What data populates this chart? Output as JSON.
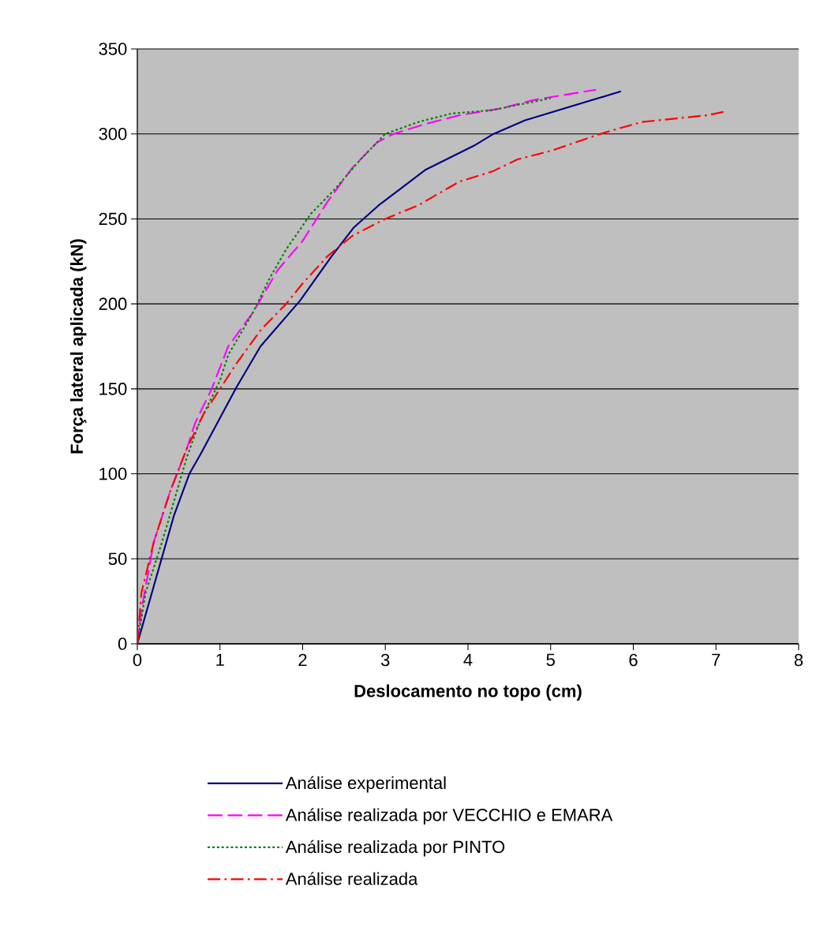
{
  "chart_data": {
    "type": "line",
    "xlabel": "Deslocamento no topo (cm)",
    "ylabel": "Força lateral aplicada (kN)",
    "xlim": [
      0,
      8
    ],
    "ylim": [
      0,
      350
    ],
    "xticks": [
      0,
      1,
      2,
      3,
      4,
      5,
      6,
      7,
      8
    ],
    "yticks": [
      0,
      50,
      100,
      150,
      200,
      250,
      300,
      350
    ],
    "grid": "y",
    "legend": "bottom",
    "series": [
      {
        "name": "Análise experimental",
        "color": "#000080",
        "line_style": "solid",
        "x": [
          0,
          0.44,
          0.63,
          0.77,
          1.2,
          1.49,
          1.97,
          2.35,
          2.62,
          2.92,
          3.49,
          4.07,
          4.31,
          4.69,
          5.85
        ],
        "values": [
          0,
          75,
          100,
          112,
          151,
          175,
          202,
          228,
          245,
          258,
          279,
          293,
          300,
          308,
          325
        ]
      },
      {
        "name": "Análise realizada por VECCHIO e EMARA",
        "color": "#ff00ff",
        "line_style": "dashed",
        "x": [
          0,
          0.05,
          0.2,
          0.4,
          0.6,
          0.7,
          0.9,
          1.1,
          1.4,
          1.7,
          2.0,
          2.3,
          2.6,
          2.9,
          3.1,
          3.5,
          3.9,
          4.4,
          4.8,
          5.55
        ],
        "values": [
          0,
          20,
          60,
          90,
          115,
          130,
          150,
          175,
          195,
          220,
          237,
          260,
          280,
          295,
          300,
          306,
          311,
          315,
          320,
          326
        ]
      },
      {
        "name": "Análise realizada por PINTO",
        "color": "#008000",
        "line_style": "dotted",
        "x": [
          0,
          0.1,
          0.3,
          0.45,
          0.6,
          0.75,
          1.0,
          1.1,
          1.4,
          1.6,
          1.8,
          2.1,
          2.4,
          2.7,
          3.0,
          3.4,
          3.8,
          4.3,
          4.7,
          5.0
        ],
        "values": [
          0,
          30,
          60,
          85,
          110,
          130,
          155,
          170,
          195,
          215,
          232,
          253,
          268,
          285,
          300,
          307,
          312,
          314,
          318,
          321
        ]
      },
      {
        "name": "Análise realizada",
        "color": "#ff0000",
        "line_style": "dashdot",
        "x": [
          0,
          0.05,
          0.2,
          0.4,
          0.6,
          0.8,
          1.0,
          1.2,
          1.5,
          1.8,
          2.0,
          2.3,
          2.6,
          3.0,
          3.4,
          3.9,
          4.3,
          4.6,
          5.0,
          5.6,
          6.1,
          6.5,
          6.9,
          7.1
        ],
        "values": [
          0,
          30,
          60,
          90,
          115,
          135,
          150,
          165,
          185,
          200,
          212,
          228,
          240,
          250,
          258,
          272,
          278,
          285,
          290,
          300,
          307,
          309,
          311,
          313
        ]
      }
    ]
  }
}
